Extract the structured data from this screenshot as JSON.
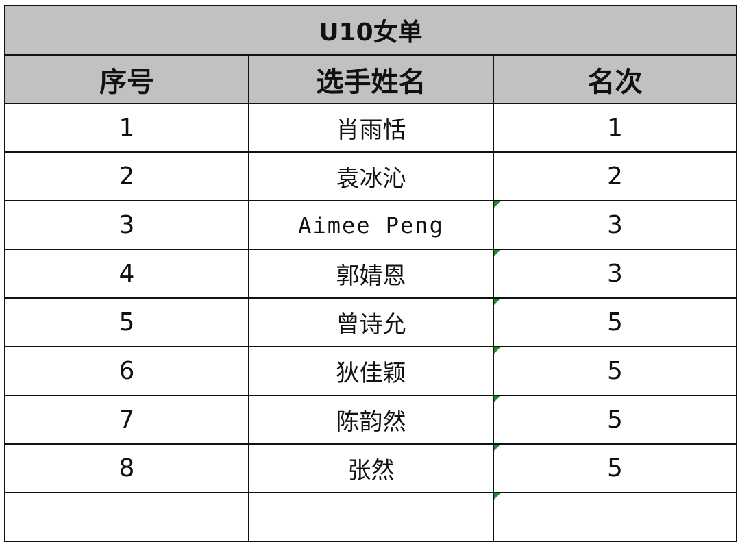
{
  "title": "U10女单",
  "headers": [
    "序号",
    "选手姓名",
    "名次"
  ],
  "rows": [
    {
      "no": "1",
      "name": "肖雨恬",
      "rank": "1",
      "marker": false
    },
    {
      "no": "2",
      "name": "袁冰沁",
      "rank": "2",
      "marker": false
    },
    {
      "no": "3",
      "name": "Aimee Peng",
      "rank": "3",
      "marker": true
    },
    {
      "no": "4",
      "name": "郭婧恩",
      "rank": "3",
      "marker": true
    },
    {
      "no": "5",
      "name": "曾诗允",
      "rank": "5",
      "marker": true
    },
    {
      "no": "6",
      "name": "狄佳颖",
      "rank": "5",
      "marker": true
    },
    {
      "no": "7",
      "name": "陈韵然",
      "rank": "5",
      "marker": true
    },
    {
      "no": "8",
      "name": "张然",
      "rank": "5",
      "marker": true
    }
  ],
  "colors": {
    "header_bg": "#c2c0c3",
    "marker": "#1c8a2a"
  }
}
